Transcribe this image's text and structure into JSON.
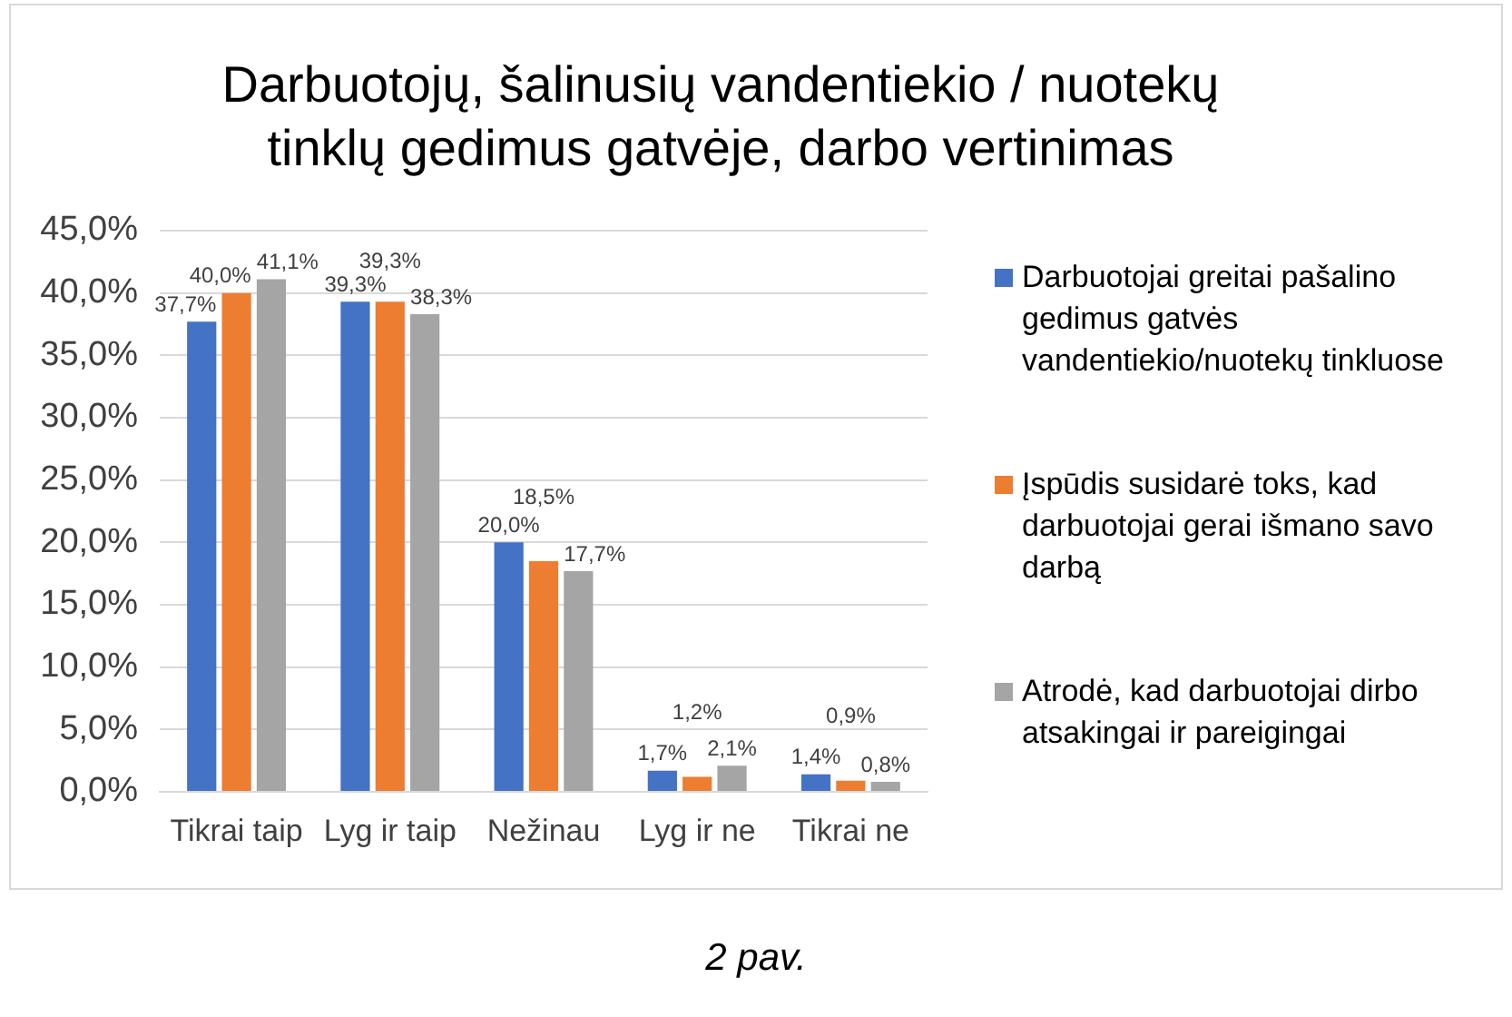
{
  "chart_data": {
    "type": "bar",
    "title": "Darbuotojų, šalinusių vandentiekio / nuotekų tinklų gedimus gatvėje, darbo vertinimas",
    "categories": [
      "Tikrai taip",
      "Lyg ir taip",
      "Nežinau",
      "Lyg ir ne",
      "Tikrai ne"
    ],
    "series": [
      {
        "name": "Darbuotojai greitai pašalino gedimus gatvės vandentiekio/nuotekų tinkluose",
        "color": "#4472c4",
        "values": [
          37.7,
          39.3,
          20.0,
          1.7,
          1.4
        ],
        "value_labels": [
          "37,7%",
          "39,3%",
          "20,0%",
          "1,7%",
          "1,4%"
        ]
      },
      {
        "name": "Įspūdis susidarė toks, kad darbuotojai gerai išmano savo darbą",
        "color": "#ed7d31",
        "values": [
          40.0,
          39.3,
          18.5,
          1.2,
          0.9
        ],
        "value_labels": [
          "40,0%",
          "39,3%",
          "18,5%",
          "1,2%",
          "0,9%"
        ]
      },
      {
        "name": "Atrodė, kad darbuotojai dirbo atsakingai ir pareigingai",
        "color": "#a5a5a5",
        "values": [
          41.1,
          38.3,
          17.7,
          2.1,
          0.8
        ],
        "value_labels": [
          "41,1%",
          "38,3%",
          "17,7%",
          "2,1%",
          "0,8%"
        ]
      }
    ],
    "ylim": [
      0,
      45
    ],
    "yticks": [
      {
        "value": 0,
        "label": "0,0%"
      },
      {
        "value": 5,
        "label": "5,0%"
      },
      {
        "value": 10,
        "label": "10,0%"
      },
      {
        "value": 15,
        "label": "15,0%"
      },
      {
        "value": 20,
        "label": "20,0%"
      },
      {
        "value": 25,
        "label": "25,0%"
      },
      {
        "value": 30,
        "label": "30,0%"
      },
      {
        "value": 35,
        "label": "35,0%"
      },
      {
        "value": 40,
        "label": "40,0%"
      },
      {
        "value": 45,
        "label": "45,0%"
      }
    ],
    "grid": "y",
    "legend": "right",
    "annotations": [
      "2 pav."
    ]
  }
}
